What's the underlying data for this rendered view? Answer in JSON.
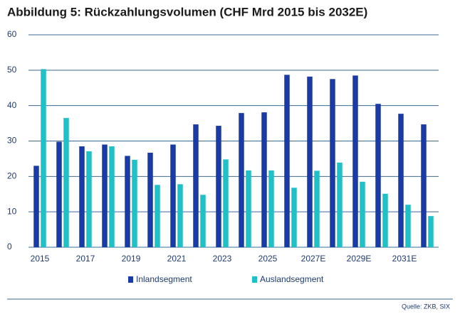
{
  "chart_data": {
    "type": "bar",
    "title": "Abbildung 5: Rückzahlungsvolumen (CHF Mrd 2015 bis 2032E)",
    "categories": [
      "2015",
      null,
      "2017",
      null,
      "2019",
      null,
      "2021",
      null,
      "2023",
      null,
      "2025",
      null,
      "2027E",
      null,
      "2029E",
      null,
      "2031E",
      null
    ],
    "series": [
      {
        "name": "Inlandsegment",
        "color": "#1a3aa6",
        "values": [
          23,
          29.8,
          28.5,
          29,
          25.8,
          26.7,
          29,
          34.7,
          34.3,
          37.9,
          38.1,
          48.7,
          48.2,
          47.5,
          48.5,
          40.5,
          37.7,
          34.7
        ]
      },
      {
        "name": "Auslandsegment",
        "color": "#1fc0c8",
        "values": [
          50.3,
          36.5,
          27.1,
          28.5,
          24.7,
          17.6,
          17.8,
          14.8,
          24.8,
          21.7,
          21.7,
          16.8,
          21.6,
          23.9,
          18.5,
          15.1,
          12,
          8.8
        ]
      }
    ],
    "ylim": [
      0,
      60
    ],
    "yticks": [
      0,
      10,
      20,
      30,
      40,
      50,
      60
    ],
    "grid": true,
    "legend": "bottom",
    "source": "Quelle: ZKB, SIX"
  }
}
